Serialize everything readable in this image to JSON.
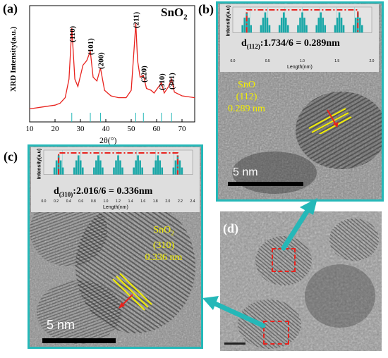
{
  "panel_a": {
    "label": "(a)",
    "material": "SnO",
    "material_sub": "2",
    "ylabel": "XRD Intensity(a.u.)",
    "xlabel": "2θ(°)",
    "peaks": [
      "(110)",
      "(101)",
      "(200)",
      "(211)",
      "(220)",
      "(310)",
      "(301)"
    ],
    "xticks": [
      "10",
      "20",
      "30",
      "40",
      "50",
      "60",
      "70"
    ]
  },
  "panel_b": {
    "label": "(b)",
    "inset_ylabel": "Intensity(a.u)",
    "inset_xlabel": "Length(nm)",
    "inset_xticks": [
      "0.0",
      "0.5",
      "1.0",
      "1.5",
      "2.0"
    ],
    "d_prefix": "d",
    "d_sub": "(112)",
    "d_value": ":1.734/6 = 0.289nm",
    "phase": "SnO",
    "plane": "(112)",
    "spacing": "0.289 nm",
    "scale_bar": "5  nm"
  },
  "panel_c": {
    "label": "(c)",
    "inset_ylabel": "Intensity(a.u)",
    "inset_xlabel": "Length(nm)",
    "inset_xticks": [
      "0.0",
      "0.2",
      "0.4",
      "0.6",
      "0.8",
      "1.0",
      "1.2",
      "1.4",
      "1.6",
      "1.8",
      "2.0",
      "2.2",
      "2.4"
    ],
    "d_prefix": "d",
    "d_sub": "(310)",
    "d_value": ":2.016/6 = 0.336nm",
    "phase": "SnO",
    "phase_sub": "2",
    "plane": "(310)",
    "spacing": "0.336 nm",
    "scale_bar": "5  nm"
  },
  "panel_d": {
    "label": "(d)"
  },
  "chart_data": {
    "type": "line",
    "xlabel": "2θ(°)",
    "ylabel": "XRD Intensity(a.u.)",
    "xlim": [
      10,
      75
    ],
    "x": [
      10,
      15,
      20,
      22,
      24,
      25.5,
      26.6,
      27.8,
      29,
      31,
      32.5,
      33.9,
      35,
      36.5,
      37.9,
      39.5,
      42,
      45,
      48,
      50,
      51.2,
      51.8,
      52.5,
      53.5,
      54.8,
      56,
      57.8,
      59,
      61.9,
      63,
      64.7,
      65.9,
      67,
      70,
      75
    ],
    "y": [
      8,
      10,
      12,
      14,
      20,
      40,
      95,
      40,
      32,
      55,
      60,
      70,
      42,
      38,
      52,
      28,
      22,
      20,
      20,
      28,
      75,
      100,
      60,
      42,
      44,
      30,
      28,
      25,
      36,
      25,
      32,
      40,
      26,
      22,
      20
    ],
    "annotations": [
      "(110)",
      "(101)",
      "(200)",
      "(211)",
      "(220)",
      "(310)",
      "(301)"
    ],
    "colors": {
      "line": "#e8231e",
      "ref": "#25b8b8"
    }
  }
}
